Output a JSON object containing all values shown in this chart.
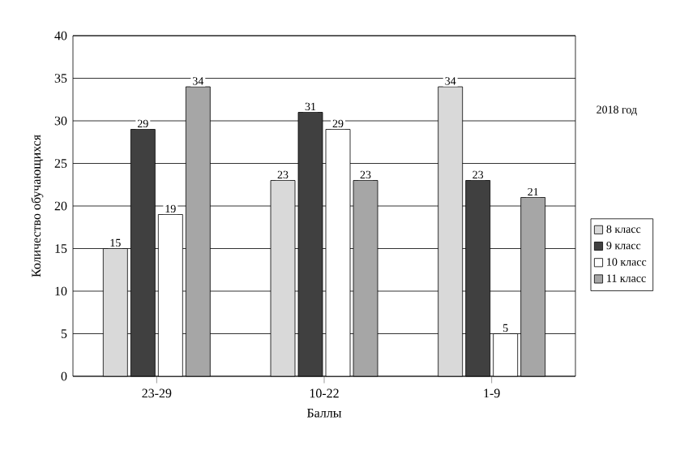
{
  "chart_data": {
    "type": "bar",
    "xlabel": "Баллы",
    "ylabel": "Количество обучающихся",
    "categories": [
      "23-29",
      "10-22",
      "1-9"
    ],
    "series": [
      {
        "name": "8 класс",
        "color": "#d9d9d9",
        "values": [
          15,
          23,
          34
        ]
      },
      {
        "name": "9 класс",
        "color": "#404040",
        "values": [
          29,
          31,
          23
        ]
      },
      {
        "name": "10 класс",
        "color": "#ffffff",
        "values": [
          19,
          29,
          5
        ]
      },
      {
        "name": "11 класс",
        "color": "#a6a6a6",
        "values": [
          34,
          23,
          21
        ]
      }
    ],
    "ylim": [
      0,
      40
    ],
    "yticks": [
      0,
      5,
      10,
      15,
      20,
      25,
      30,
      35,
      40
    ],
    "grid": "y",
    "legend": "right",
    "data_labels": true,
    "annotations": [
      "2018 год"
    ]
  }
}
